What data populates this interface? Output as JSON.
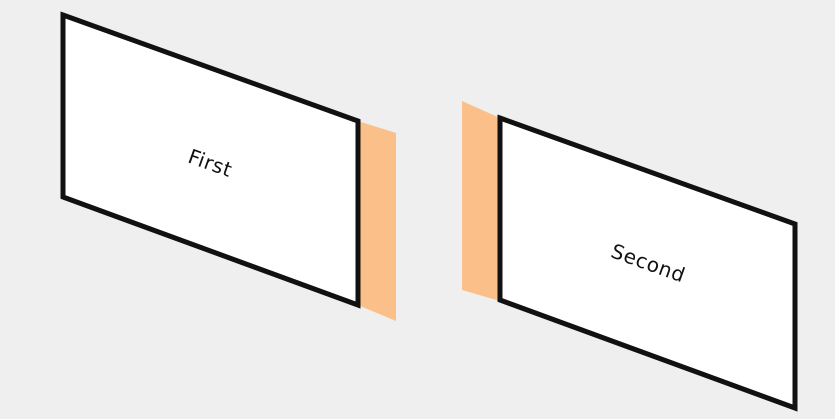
{
  "cards": [
    {
      "label": "First"
    },
    {
      "label": "Second"
    }
  ],
  "colors": {
    "background": "#efefef",
    "card_fill": "#ffffff",
    "card_stroke": "#111111",
    "side_accent": "#fbbf89"
  }
}
